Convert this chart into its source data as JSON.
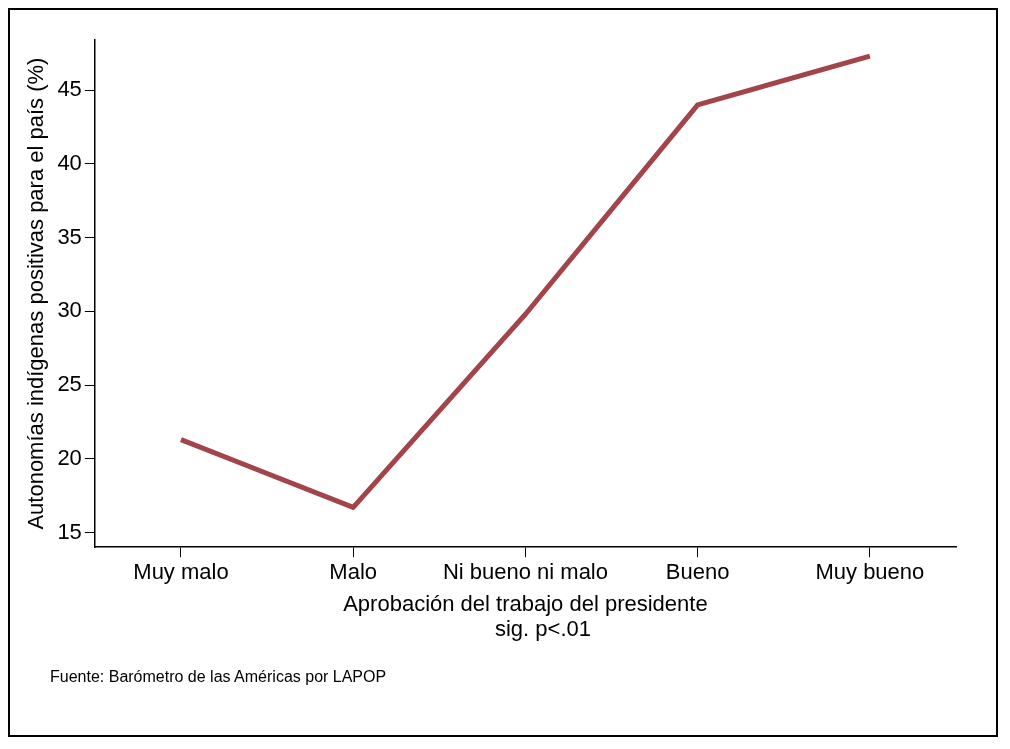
{
  "chart_data": {
    "type": "line",
    "xlabel": "Aprobación del trabajo del presidente",
    "ylabel": "Autonomías indígenas positivas para el país (%)",
    "categories": [
      "Muy malo",
      "Malo",
      "Ni bueno ni malo",
      "Bueno",
      "Muy bueno"
    ],
    "series": [
      {
        "color": "#a3444a",
        "values": [
          21.3,
          16.7,
          29.8,
          44.0,
          47.3
        ]
      }
    ],
    "ylim": [
      14,
      48.4
    ],
    "yticks": [
      15,
      20,
      25,
      30,
      35,
      40,
      45
    ],
    "grid": false,
    "legend": false,
    "marker": "none",
    "line_style": "solid",
    "annotations": [
      "sig. p<.01",
      "Fuente: Barómetro de las Américas por LAPOP"
    ]
  }
}
